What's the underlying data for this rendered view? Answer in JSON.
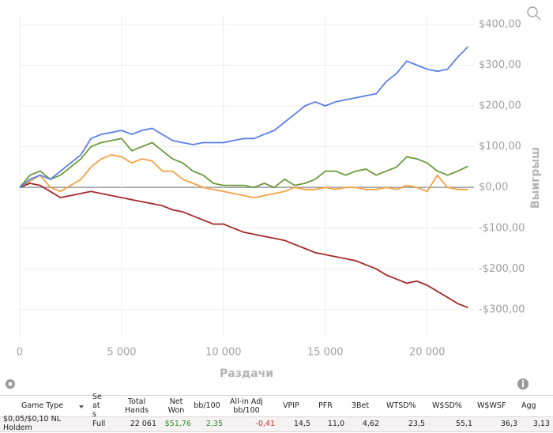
{
  "chart_data": {
    "type": "line",
    "x_label": "Раздачи",
    "y_label": "Выигрыш",
    "x": [
      0,
      500,
      1000,
      1500,
      2000,
      2500,
      3000,
      3500,
      4000,
      4500,
      5000,
      5500,
      6000,
      6500,
      7000,
      7500,
      8000,
      8500,
      9000,
      9500,
      10000,
      10500,
      11000,
      11500,
      12000,
      12500,
      13000,
      13500,
      14000,
      14500,
      15000,
      15500,
      16000,
      16500,
      17000,
      17500,
      18000,
      18500,
      19000,
      19500,
      20000,
      20500,
      21000,
      21500,
      22000
    ],
    "series": [
      {
        "color": "#f5a040",
        "values": [
          0,
          15,
          30,
          0,
          -10,
          5,
          20,
          50,
          70,
          80,
          75,
          60,
          70,
          65,
          40,
          40,
          20,
          10,
          0,
          -5,
          -10,
          -15,
          -20,
          -25,
          -20,
          -15,
          -10,
          0,
          -5,
          -5,
          0,
          -5,
          0,
          0,
          -5,
          -5,
          0,
          -5,
          5,
          0,
          -10,
          30,
          0,
          -5,
          -5
        ]
      },
      {
        "color": "#a52828",
        "values": [
          0,
          10,
          5,
          -10,
          -25,
          -20,
          -15,
          -10,
          -15,
          -20,
          -25,
          -30,
          -35,
          -40,
          -45,
          -55,
          -60,
          -70,
          -80,
          -90,
          -90,
          -100,
          -110,
          -115,
          -120,
          -125,
          -130,
          -140,
          -150,
          -160,
          -165,
          -170,
          -175,
          -180,
          -190,
          -200,
          -215,
          -225,
          -235,
          -230,
          -240,
          -255,
          -270,
          -285,
          -295
        ]
      },
      {
        "color": "#6a9a3a",
        "values": [
          0,
          30,
          40,
          20,
          30,
          50,
          70,
          100,
          110,
          115,
          120,
          90,
          100,
          110,
          90,
          70,
          60,
          40,
          30,
          10,
          5,
          5,
          5,
          0,
          10,
          0,
          20,
          5,
          10,
          20,
          40,
          40,
          30,
          40,
          45,
          30,
          40,
          50,
          75,
          70,
          60,
          40,
          30,
          40,
          52
        ]
      },
      {
        "color": "#5b7fe8",
        "values": [
          0,
          20,
          30,
          20,
          40,
          60,
          80,
          120,
          130,
          135,
          140,
          130,
          140,
          145,
          130,
          115,
          110,
          105,
          110,
          110,
          110,
          115,
          120,
          120,
          130,
          140,
          160,
          180,
          200,
          210,
          200,
          210,
          215,
          220,
          225,
          230,
          260,
          280,
          310,
          300,
          290,
          285,
          290,
          320,
          345
        ]
      }
    ],
    "xlim": [
      0,
      22300
    ],
    "ylim": [
      -370,
      425
    ],
    "xticks": [
      0,
      {
        "value": 5000,
        "label": "5 000"
      },
      {
        "value": 10000,
        "label": "10 000"
      },
      {
        "value": 15000,
        "label": "15 000"
      },
      {
        "value": 20000,
        "label": "20 000"
      }
    ],
    "yticks": [
      {
        "value": 400,
        "label": "$400,00"
      },
      {
        "value": 300,
        "label": "$300,00"
      },
      {
        "value": 200,
        "label": "$200,00"
      },
      {
        "value": 100,
        "label": "$100,00"
      },
      {
        "value": 0,
        "label": "$0,00"
      },
      {
        "value": -100,
        "label": "-$100,00"
      },
      {
        "value": -200,
        "label": "-$200,00"
      },
      {
        "value": -300,
        "label": "-$300,00"
      }
    ],
    "grid": true
  },
  "table": {
    "headers": [
      "Game Type",
      "Seats",
      "Total Hands",
      "Net Won",
      "bb/100",
      "All-in Adj bb/100",
      "VPIP",
      "PFR",
      "3Bet",
      "WTSD%",
      "W$SD%",
      "W$WSF",
      "Agg"
    ],
    "rows": [
      [
        "$0,05/$0,10 NL Holdem",
        "Full",
        "22 061",
        "$51,76",
        "2,35",
        "-0,41",
        "14,5",
        "11,0",
        "4,62",
        "23,5",
        "55,1",
        "36,3",
        "3,13"
      ]
    ]
  }
}
